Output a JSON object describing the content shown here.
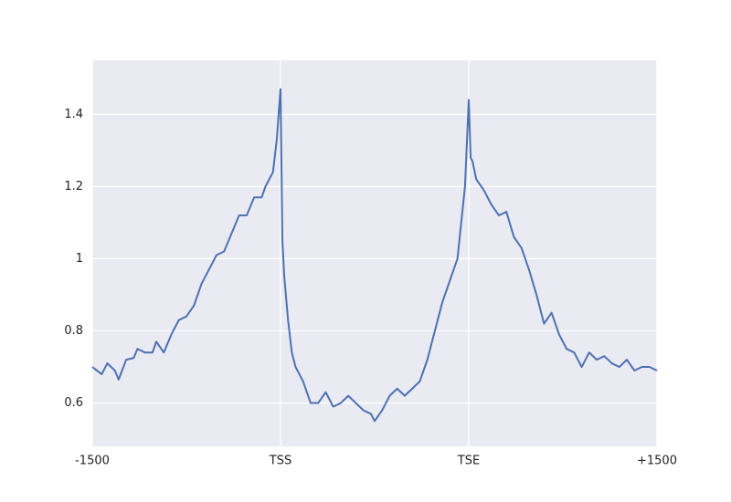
{
  "chart_data": {
    "type": "line",
    "x": [
      0,
      5,
      8,
      12,
      14,
      18,
      22,
      24,
      28,
      32,
      34,
      38,
      42,
      46,
      50,
      54,
      58,
      62,
      66,
      70,
      74,
      78,
      82,
      86,
      90,
      92,
      96,
      98,
      100,
      101,
      102,
      104,
      106,
      108,
      112,
      116,
      120,
      124,
      128,
      132,
      136,
      140,
      144,
      148,
      150,
      154,
      158,
      162,
      166,
      170,
      174,
      178,
      182,
      186,
      190,
      194,
      198,
      200,
      201,
      202,
      204,
      208,
      212,
      216,
      220,
      224,
      228,
      232,
      236,
      240,
      244,
      248,
      252,
      256,
      260,
      264,
      268,
      272,
      276,
      280,
      284,
      288,
      292,
      296,
      300
    ],
    "series": [
      {
        "color": "#4c72b0",
        "values": [
          0.7,
          0.68,
          0.71,
          0.69,
          0.665,
          0.72,
          0.725,
          0.75,
          0.74,
          0.74,
          0.77,
          0.74,
          0.79,
          0.83,
          0.84,
          0.87,
          0.93,
          0.97,
          1.01,
          1.02,
          1.07,
          1.12,
          1.12,
          1.17,
          1.17,
          1.2,
          1.24,
          1.33,
          1.47,
          1.05,
          0.95,
          0.83,
          0.74,
          0.7,
          0.66,
          0.6,
          0.6,
          0.63,
          0.59,
          0.6,
          0.62,
          0.6,
          0.58,
          0.57,
          0.55,
          0.58,
          0.62,
          0.64,
          0.62,
          0.64,
          0.66,
          0.72,
          0.8,
          0.88,
          0.94,
          1.0,
          1.2,
          1.44,
          1.28,
          1.27,
          1.22,
          1.19,
          1.15,
          1.12,
          1.13,
          1.06,
          1.03,
          0.97,
          0.9,
          0.82,
          0.85,
          0.79,
          0.75,
          0.74,
          0.7,
          0.74,
          0.72,
          0.73,
          0.71,
          0.7,
          0.72,
          0.69,
          0.7,
          0.7,
          0.69
        ]
      }
    ],
    "xlim": [
      0,
      300
    ],
    "xticks": [
      {
        "value": 0,
        "label": "-1500"
      },
      {
        "value": 100,
        "label": "TSS"
      },
      {
        "value": 200,
        "label": "TSE"
      },
      {
        "value": 300,
        "label": "+1500"
      }
    ],
    "ylim": [
      0.48,
      1.55
    ],
    "yticks": [
      0.6,
      0.8,
      1.0,
      1.2,
      1.4
    ],
    "grid": true
  }
}
